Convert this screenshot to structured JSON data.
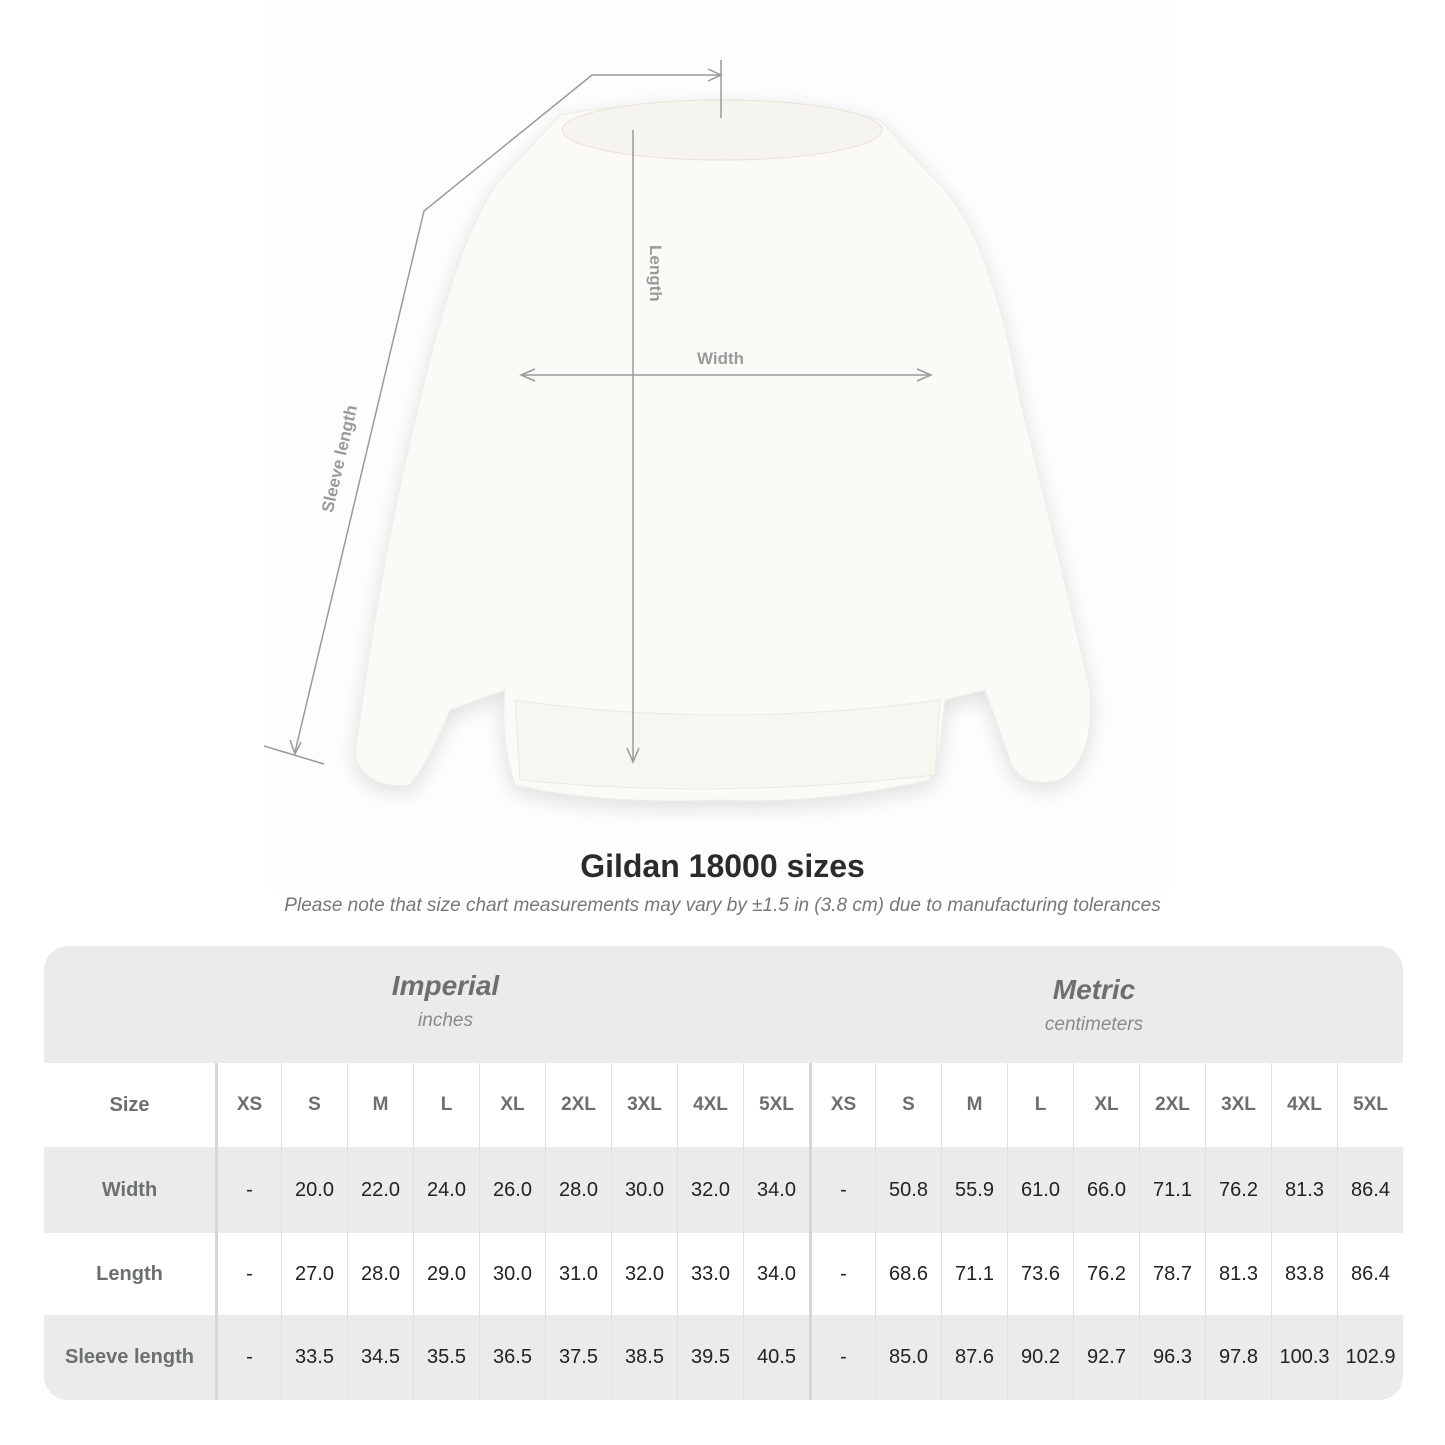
{
  "diagram": {
    "labels": {
      "length": "Length",
      "width": "Width",
      "sleeve": "Sleeve length"
    },
    "line_color": "#9a9a9a",
    "garment_color": "#fbfaf7"
  },
  "title": "Gildan 18000 sizes",
  "note": "Please note that size chart measurements may vary by ±1.5 in (3.8 cm) due to manufacturing tolerances",
  "table": {
    "imperial": {
      "name": "Imperial",
      "unit": "inches"
    },
    "metric": {
      "name": "Metric",
      "unit": "centimeters"
    },
    "size_label": "Size",
    "sizes": [
      "XS",
      "S",
      "M",
      "L",
      "XL",
      "2XL",
      "3XL",
      "4XL",
      "5XL"
    ],
    "rows": [
      {
        "label": "Width",
        "imperial": [
          "-",
          "20.0",
          "22.0",
          "24.0",
          "26.0",
          "28.0",
          "30.0",
          "32.0",
          "34.0"
        ],
        "metric": [
          "-",
          "50.8",
          "55.9",
          "61.0",
          "66.0",
          "71.1",
          "76.2",
          "81.3",
          "86.4"
        ]
      },
      {
        "label": "Length",
        "imperial": [
          "-",
          "27.0",
          "28.0",
          "29.0",
          "30.0",
          "31.0",
          "32.0",
          "33.0",
          "34.0"
        ],
        "metric": [
          "-",
          "68.6",
          "71.1",
          "73.6",
          "76.2",
          "78.7",
          "81.3",
          "83.8",
          "86.4"
        ]
      },
      {
        "label": "Sleeve length",
        "imperial": [
          "-",
          "33.5",
          "34.5",
          "35.5",
          "36.5",
          "37.5",
          "38.5",
          "39.5",
          "40.5"
        ],
        "metric": [
          "-",
          "85.0",
          "87.6",
          "90.2",
          "92.7",
          "96.3",
          "97.8",
          "100.3",
          "102.9"
        ]
      }
    ],
    "colors": {
      "band": "#ebebeb",
      "text": "#6b6f70"
    }
  }
}
